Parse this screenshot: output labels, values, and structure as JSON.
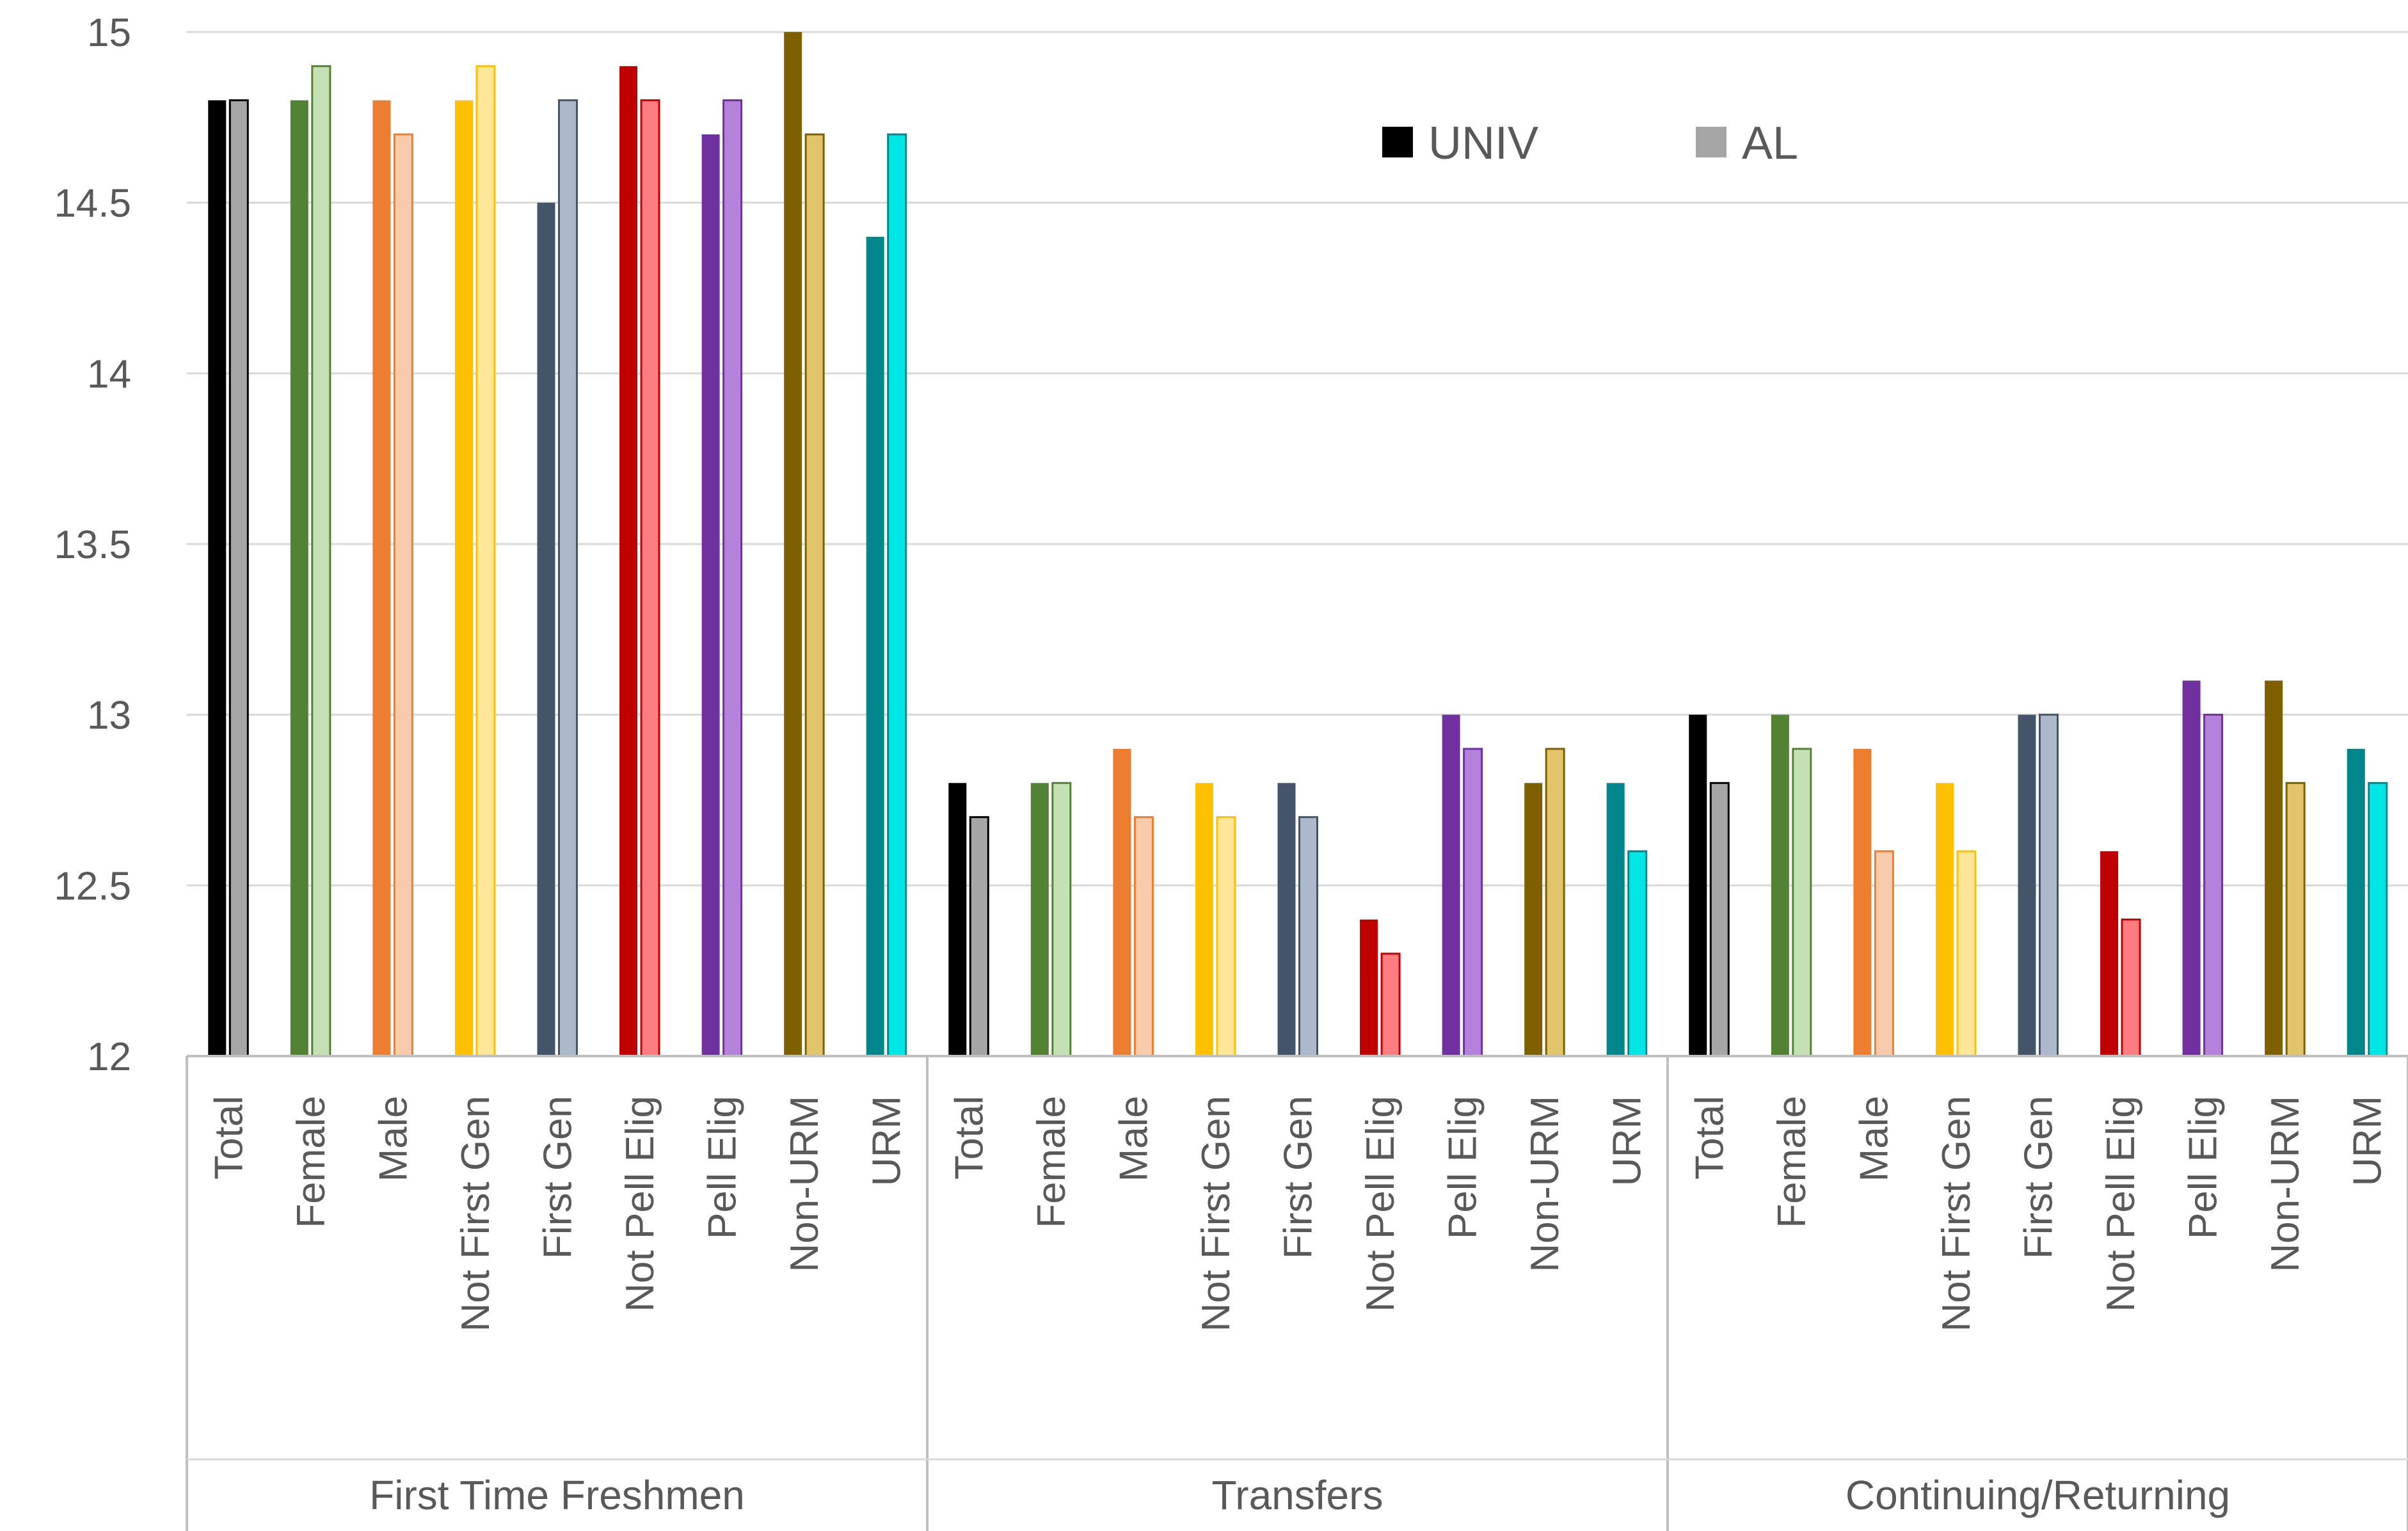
{
  "chart_data": {
    "type": "bar",
    "title": "",
    "xlabel": "",
    "ylabel": "",
    "ylim": [
      12,
      15
    ],
    "yticks": [
      12,
      12.5,
      13,
      13.5,
      14,
      14.5,
      15
    ],
    "ytick_labels": [
      "12",
      "12.5",
      "13",
      "13.5",
      "14",
      "14.5",
      "15"
    ],
    "grid": true,
    "legend_position": "top-right",
    "categories": [
      "Total",
      "Female",
      "Male",
      "Not First Gen",
      "First Gen",
      "Not Pell Elig",
      "Pell Elig",
      "Non-URM",
      "URM"
    ],
    "category_colors": {
      "univ": [
        "#000000",
        "#548235",
        "#ED7D31",
        "#FFC000",
        "#44546A",
        "#C00000",
        "#7030A0",
        "#7F6000",
        "#00868B"
      ],
      "al": [
        "#A6A6A6",
        "#C5E0B4",
        "#F8CBAD",
        "#FFE699",
        "#ADB9CA",
        "#FF7C80",
        "#B482DA",
        "#E2C46A",
        "#00E5E5"
      ]
    },
    "groups": [
      {
        "name": "First Time Freshmen",
        "UNIV": [
          14.8,
          14.8,
          14.8,
          14.8,
          14.5,
          14.9,
          14.7,
          15.0,
          14.4
        ],
        "AL": [
          14.8,
          14.9,
          14.7,
          14.9,
          14.8,
          14.8,
          14.8,
          14.7,
          14.7
        ]
      },
      {
        "name": "Transfers",
        "UNIV": [
          12.8,
          12.8,
          12.9,
          12.8,
          12.8,
          12.4,
          13.0,
          12.8,
          12.8
        ],
        "AL": [
          12.7,
          12.8,
          12.7,
          12.7,
          12.7,
          12.3,
          12.9,
          12.9,
          12.6
        ]
      },
      {
        "name": "Continuing/Returning",
        "UNIV": [
          13.0,
          13.0,
          12.9,
          12.8,
          13.0,
          12.6,
          13.1,
          13.1,
          12.9
        ],
        "AL": [
          12.8,
          12.9,
          12.6,
          12.6,
          13.0,
          12.4,
          13.0,
          12.8,
          12.8
        ]
      }
    ],
    "series": [
      {
        "name": "UNIV",
        "legend_color": "#000000"
      },
      {
        "name": "AL",
        "legend_color": "#A6A6A6"
      }
    ]
  }
}
